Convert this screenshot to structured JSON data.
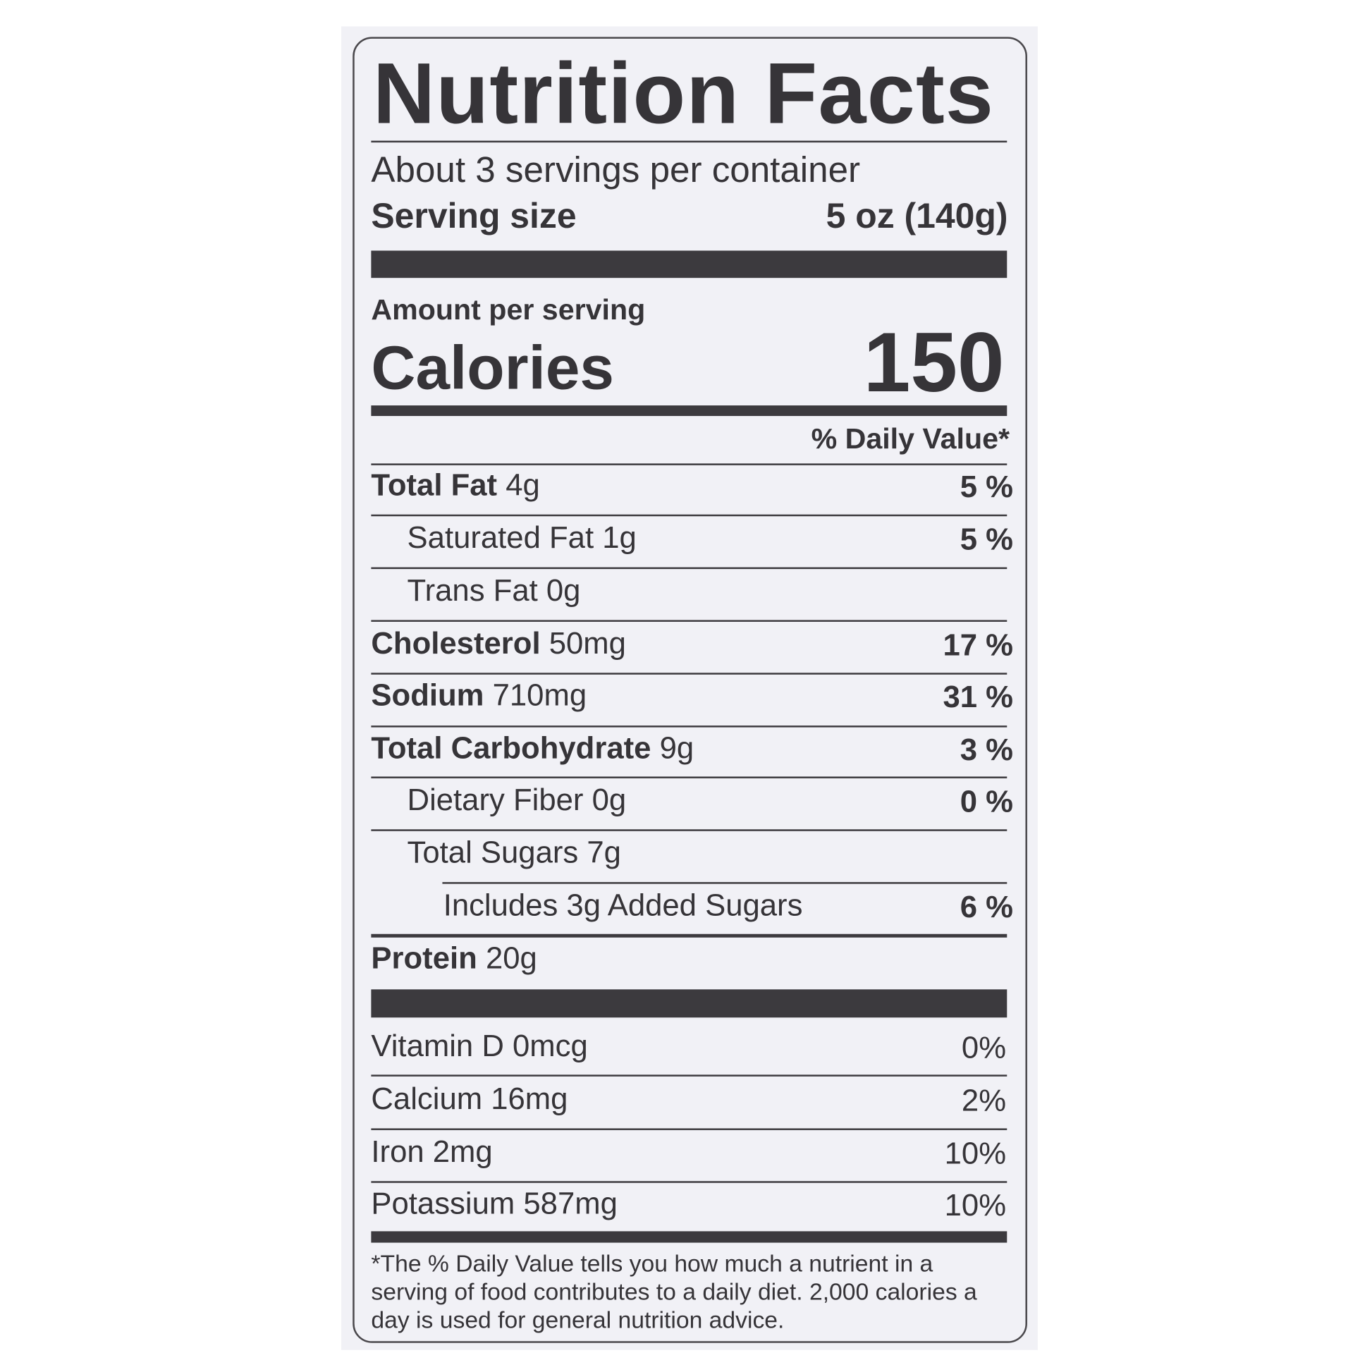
{
  "title": "Nutrition Facts",
  "servings_per_container": "About 3 servings per container",
  "serving_size_label": "Serving size",
  "serving_size_value": "5 oz (140g)",
  "amount_per_serving": "Amount per serving",
  "calories_label": "Calories",
  "calories_value": "150",
  "daily_value_header": "% Daily Value*",
  "nutrients": [
    {
      "name": "Total Fat",
      "amount": "4g",
      "dv": "5 %"
    },
    {
      "name": "Saturated Fat",
      "amount": "1g",
      "dv": "5 %"
    },
    {
      "name": "Trans Fat",
      "amount": "0g",
      "dv": ""
    },
    {
      "name": "Cholesterol",
      "amount": "50mg",
      "dv": "17 %"
    },
    {
      "name": "Sodium",
      "amount": "710mg",
      "dv": "31 %"
    },
    {
      "name": "Total Carbohydrate",
      "amount": "9g",
      "dv": "3 %"
    },
    {
      "name": "Dietary Fiber",
      "amount": "0g",
      "dv": "0 %"
    },
    {
      "name": "Total Sugars",
      "amount": "7g",
      "dv": ""
    },
    {
      "name": "Includes 3g Added Sugars",
      "amount": "",
      "dv": "6 %"
    },
    {
      "name": "Protein",
      "amount": "20g",
      "dv": ""
    }
  ],
  "vitamins": [
    {
      "name": "Vitamin D",
      "amount": "0mcg",
      "dv": "0%"
    },
    {
      "name": "Calcium",
      "amount": "16mg",
      "dv": "2%"
    },
    {
      "name": "Iron",
      "amount": "2mg",
      "dv": "10%"
    },
    {
      "name": "Potassium",
      "amount": "587mg",
      "dv": "10%"
    }
  ],
  "footnote": "*The % Daily Value tells you how much a nutrient in a serving of food contributes to a daily diet. 2,000 calories a day is used for general nutrition advice."
}
